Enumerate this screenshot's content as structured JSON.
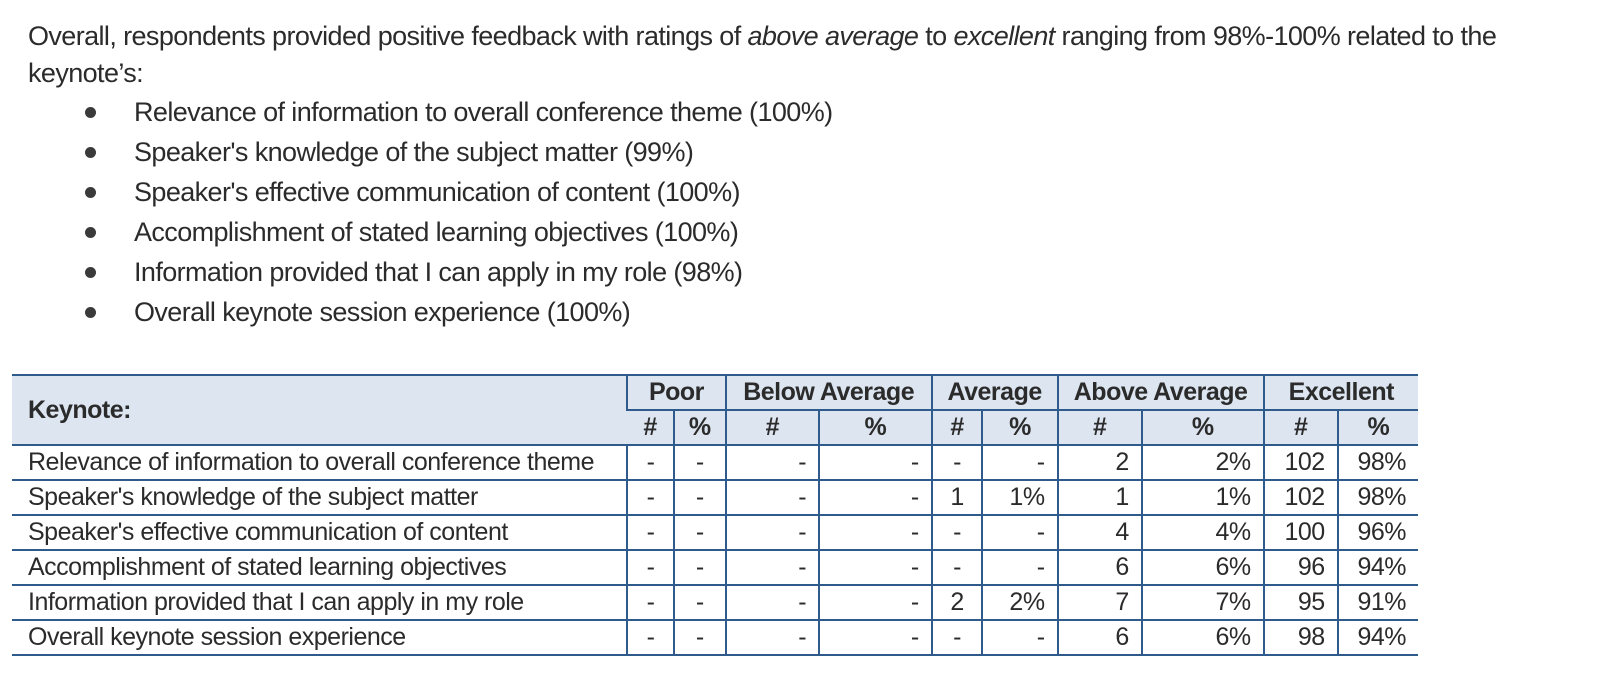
{
  "intro": {
    "part1": "Overall, respondents provided positive feedback with ratings of ",
    "em1": "above average",
    "part2": " to ",
    "em2": "excellent",
    "part3": " ranging from 98%-100% related to the keynote’s:"
  },
  "bullets": [
    "Relevance of information to overall conference theme (100%)",
    "Speaker's knowledge of the subject matter (99%)",
    "Speaker's effective communication of content (100%)",
    "Accomplishment of stated learning objectives (100%)",
    "Information provided that I can apply in my role (98%)",
    "Overall keynote session experience (100%)"
  ],
  "table": {
    "row_header": "Keynote:",
    "groups": [
      "Poor",
      "Below Average",
      "Average",
      "Above Average",
      "Excellent"
    ],
    "subheaders": [
      "#",
      "%",
      "#",
      "%",
      "#",
      "%",
      "#",
      "%",
      "#",
      "%"
    ],
    "rows": [
      {
        "label": "Relevance of information  to overall conference  theme",
        "cells": [
          "-",
          "-",
          "-",
          "-",
          "-",
          "-",
          "2",
          "2%",
          "102",
          "98%"
        ]
      },
      {
        "label": "Speaker's knowledge  of the subject  matter",
        "cells": [
          "-",
          "-",
          "-",
          "-",
          "1",
          "1%",
          "1",
          "1%",
          "102",
          "98%"
        ]
      },
      {
        "label": "Speaker's effective  communication  of content",
        "cells": [
          "-",
          "-",
          "-",
          "-",
          "-",
          "-",
          "4",
          "4%",
          "100",
          "96%"
        ]
      },
      {
        "label": "Accomplishment  of stated  learning objectives",
        "cells": [
          "-",
          "-",
          "-",
          "-",
          "-",
          "-",
          "6",
          "6%",
          "96",
          "94%"
        ]
      },
      {
        "label": "Information  provided that I can apply in my role",
        "cells": [
          "-",
          "-",
          "-",
          "-",
          "2",
          "2%",
          "7",
          "7%",
          "95",
          "91%"
        ]
      },
      {
        "label": "Overall keynote session  experience",
        "cells": [
          "-",
          "-",
          "-",
          "-",
          "-",
          "-",
          "6",
          "6%",
          "98",
          "94%"
        ]
      }
    ]
  }
}
